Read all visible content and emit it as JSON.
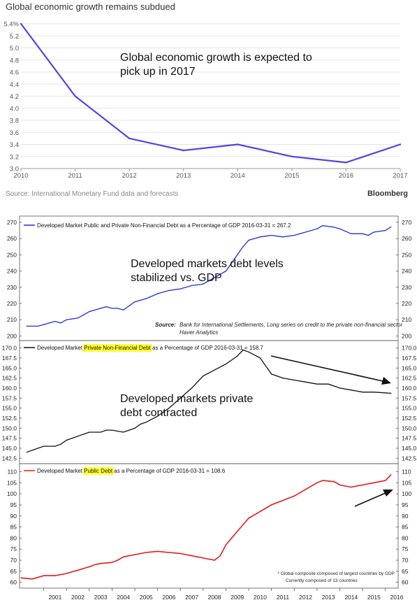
{
  "chart_data": [
    {
      "type": "line",
      "title": "Global economic growth remains subdued",
      "annotation": "Global economic growth is expected to pick up in 2017",
      "source": "Source: International Monetary Fund data and forecasts",
      "brand": "Bloomberg",
      "x": [
        2010,
        2011,
        2012,
        2013,
        2014,
        2015,
        2016,
        2017
      ],
      "values": [
        5.4,
        4.2,
        3.5,
        3.3,
        3.4,
        3.2,
        3.1,
        3.4
      ],
      "xticks": [
        "2010",
        "2011",
        "2012",
        "2013",
        "2014",
        "2015",
        "2016",
        "2017"
      ],
      "yticks": [
        "3.0",
        "3.2",
        "3.4",
        "3.6",
        "3.8",
        "4.0",
        "4.2",
        "4.4",
        "4.6",
        "4.8",
        "5.0",
        "5.2",
        "5.4%"
      ],
      "ylim": [
        3.0,
        5.4
      ],
      "color": "#5b3ee6",
      "grid": true
    },
    {
      "type": "line",
      "legend": "Developed Market Public and Private Non-Financial Debt as a Percentage of GDP 2016-03-31 = 267.2",
      "annotation": "Developed markets debt levels stabilized vs. GDP",
      "source_label": "Source:",
      "source_text": "Bank for International Settlements, Long series on credit to the private non-financial sector",
      "source_text2": "Haver Analytics",
      "x": [
        2000.25,
        2000.75,
        2001.0,
        2001.5,
        2001.75,
        2002.0,
        2002.5,
        2002.75,
        2003.0,
        2003.5,
        2003.75,
        2004.0,
        2004.25,
        2004.5,
        2005.0,
        2005.5,
        2006.0,
        2006.5,
        2007.0,
        2007.5,
        2008.0,
        2008.25,
        2008.5,
        2009.0,
        2009.5,
        2009.75,
        2010.0,
        2010.5,
        2011.0,
        2011.5,
        2012.0,
        2012.5,
        2013.0,
        2013.25,
        2013.75,
        2014.0,
        2014.5,
        2015.0,
        2015.25,
        2015.5,
        2016.0,
        2016.25
      ],
      "values": [
        206,
        206,
        207,
        209,
        208,
        210,
        211,
        213,
        215,
        217,
        218,
        217,
        217,
        216,
        221,
        223,
        226,
        228,
        229,
        231,
        232,
        234,
        236,
        240,
        250,
        255,
        259,
        261,
        262,
        261,
        262,
        264,
        266,
        268,
        267,
        266,
        263,
        263,
        262,
        264,
        265,
        267.2
      ],
      "yticks": [
        200,
        210,
        220,
        230,
        240,
        250,
        260,
        270
      ],
      "ylim": [
        198,
        273
      ],
      "color": "#1f2ed6"
    },
    {
      "type": "line",
      "legend_pre": "Developed Market ",
      "legend_hl": "Private Non-Financial Debt",
      "legend_post": " as a Percentage of GDP 2016-03-31 = 158.7",
      "annotation": "Developed markets private debt contracted",
      "x": [
        2000.25,
        2000.75,
        2001.0,
        2001.5,
        2001.75,
        2002.0,
        2002.5,
        2002.75,
        2003.0,
        2003.5,
        2003.75,
        2004.0,
        2004.5,
        2004.75,
        2005.0,
        2005.25,
        2005.5,
        2006.0,
        2006.5,
        2007.0,
        2007.5,
        2008.0,
        2008.5,
        2009.0,
        2009.5,
        2009.75,
        2010.0,
        2010.5,
        2011.0,
        2011.5,
        2012.0,
        2012.5,
        2013.0,
        2013.5,
        2014.0,
        2014.5,
        2015.0,
        2015.5,
        2016.0,
        2016.25
      ],
      "values": [
        144.0,
        145.0,
        145.5,
        145.5,
        146.0,
        147.0,
        148.0,
        148.5,
        149.0,
        149.0,
        149.5,
        149.5,
        149.0,
        149.5,
        150.0,
        151.0,
        151.5,
        153.0,
        155.0,
        157.5,
        160.0,
        163.0,
        164.5,
        166.0,
        168.0,
        169.5,
        169.0,
        167.5,
        163.5,
        162.5,
        162.0,
        161.5,
        161.0,
        161.0,
        160.0,
        159.5,
        159.0,
        159.0,
        158.8,
        158.7
      ],
      "yticks": [
        "142.5",
        "145.0",
        "147.5",
        "150.0",
        "152.5",
        "155.0",
        "157.5",
        "160.0",
        "162.5",
        "165.0",
        "167.5",
        "170.0"
      ],
      "ylim": [
        141.5,
        171.5
      ],
      "color": "#111111"
    },
    {
      "type": "line",
      "legend_pre": "Developed Market ",
      "legend_hl": "Public Debt",
      "legend_post": " as a Percentage of GDP 2016-03-31 = 108.6",
      "footnote1": "* Global composite composed of largest countries by GDP",
      "footnote2": "Currently composed of 13 countries",
      "x": [
        2000.0,
        2000.5,
        2001.0,
        2001.5,
        2002.0,
        2002.5,
        2003.0,
        2003.25,
        2003.5,
        2004.0,
        2004.25,
        2004.5,
        2005.0,
        2005.5,
        2006.0,
        2006.5,
        2007.0,
        2007.5,
        2008.0,
        2008.25,
        2008.5,
        2008.75,
        2009.0,
        2009.5,
        2009.75,
        2010.0,
        2010.5,
        2011.0,
        2011.5,
        2012.0,
        2012.5,
        2013.0,
        2013.25,
        2013.75,
        2014.0,
        2014.5,
        2015.0,
        2015.5,
        2016.0,
        2016.25
      ],
      "values": [
        62,
        61.5,
        63,
        63,
        64,
        65.5,
        67,
        68,
        68.5,
        69,
        70,
        71.5,
        72.5,
        73.5,
        74,
        73.5,
        73,
        72,
        71,
        70.5,
        70,
        72,
        77,
        83,
        86,
        89,
        92,
        95,
        97,
        99,
        102,
        105,
        106,
        105.5,
        104,
        103,
        104,
        105,
        106,
        108.6
      ],
      "xticks": [
        "2001",
        "2002",
        "2003",
        "2004",
        "2005",
        "2006",
        "2007",
        "2008",
        "2009",
        "2010",
        "2011",
        "2012",
        "2013",
        "2014",
        "2015",
        "2016"
      ],
      "yticks": [
        60,
        65,
        70,
        75,
        80,
        85,
        90,
        95,
        100,
        105,
        110
      ],
      "ylim": [
        58,
        113
      ],
      "color": "#e31a1a"
    }
  ]
}
